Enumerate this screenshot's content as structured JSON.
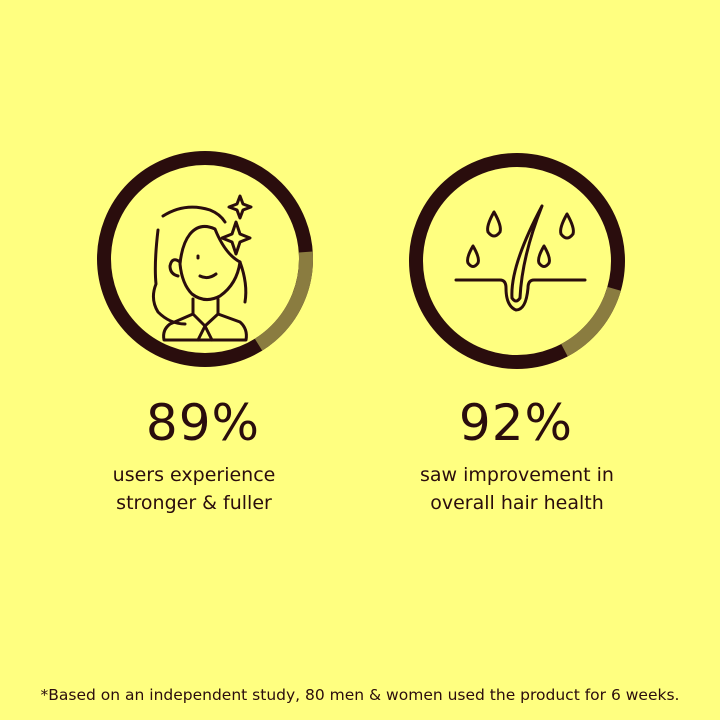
{
  "colors": {
    "background": "#ffff80",
    "ring": "#2a0d0d",
    "ring_segment": "#8a7c40",
    "text": "#2a0d0d"
  },
  "stats": [
    {
      "icon": "woman-sparkle-icon",
      "value": "89%",
      "caption_line1": "users experience",
      "caption_line2": "stronger & fuller"
    },
    {
      "icon": "hair-follicle-drops-icon",
      "value": "92%",
      "caption_line1": "saw improvement in",
      "caption_line2": "overall hair health"
    }
  ],
  "footnote": "*Based on an independent study, 80 men & women used the product for 6 weeks."
}
